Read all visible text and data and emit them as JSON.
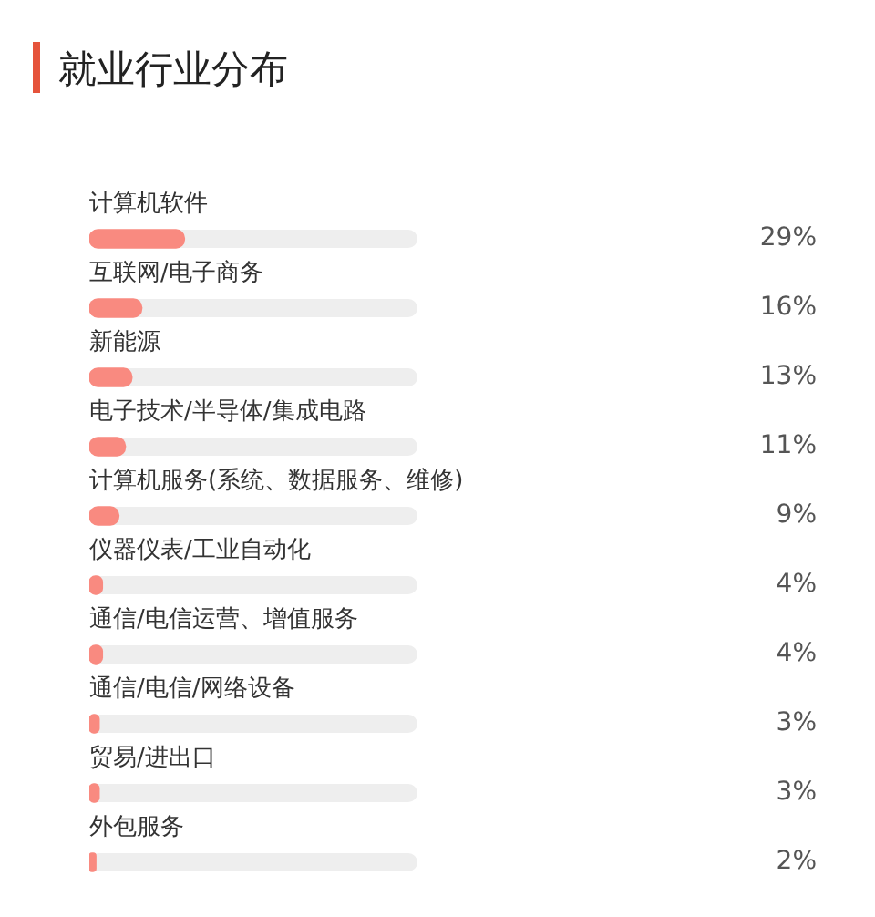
{
  "chart_data": {
    "type": "bar",
    "orientation": "horizontal",
    "title": "就业行业分布",
    "categories": [
      "计算机软件",
      "互联网/电子商务",
      "新能源",
      "电子技术/半导体/集成电路",
      "计算机服务(系统、数据服务、维修)",
      "仪器仪表/工业自动化",
      "通信/电信运营、增值服务",
      "通信/电信/网络设备",
      "贸易/进出口",
      "外包服务"
    ],
    "values": [
      29,
      16,
      13,
      11,
      9,
      4,
      4,
      3,
      3,
      2
    ],
    "value_labels": [
      "29%",
      "16%",
      "13%",
      "11%",
      "9%",
      "4%",
      "4%",
      "3%",
      "3%",
      "2%"
    ],
    "color": "#f98a80",
    "xlim": [
      0,
      100
    ],
    "tick_labels": "y"
  }
}
